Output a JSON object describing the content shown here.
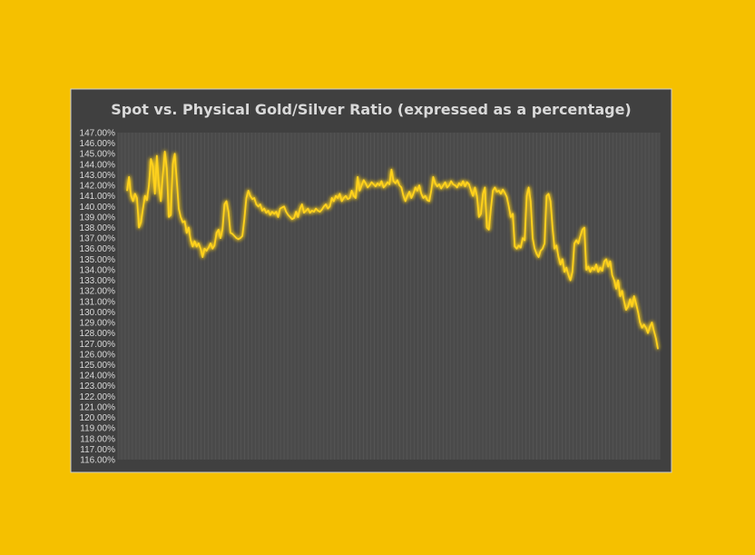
{
  "colors": {
    "page_background": "#f5c000",
    "chart_background": "#404040",
    "plot_area": "#4a4a4a",
    "line": "#ffd21f",
    "glow": "#ffe36b",
    "text": "#d9d9d9"
  },
  "chart_data": {
    "type": "line",
    "title": "Spot vs. Physical Gold/Silver Ratio (expressed as a percentage)",
    "xlabel": "",
    "ylabel": "",
    "ylim": [
      116,
      147
    ],
    "y_tick_step": 1,
    "y_tick_labels": [
      "147.00%",
      "146.00%",
      "145.00%",
      "144.00%",
      "143.00%",
      "142.00%",
      "141.00%",
      "140.00%",
      "139.00%",
      "138.00%",
      "137.00%",
      "136.00%",
      "135.00%",
      "134.00%",
      "133.00%",
      "132.00%",
      "131.00%",
      "130.00%",
      "129.00%",
      "128.00%",
      "127.00%",
      "126.00%",
      "125.00%",
      "124.00%",
      "123.00%",
      "122.00%",
      "121.00%",
      "120.00%",
      "119.00%",
      "118.00%",
      "117.00%",
      "116.00%"
    ],
    "x_axis_labels_shown": false,
    "grid": "vertical",
    "legend": "none",
    "series": [
      {
        "values": [
          141.5,
          142.8,
          141.0,
          140.5,
          141.2,
          140.8,
          138.0,
          138.5,
          139.8,
          141.0,
          140.6,
          142.0,
          144.5,
          143.8,
          141.2,
          144.8,
          142.0,
          140.5,
          143.0,
          145.2,
          143.6,
          139.0,
          139.2,
          144.0,
          145.0,
          142.5,
          139.8,
          139.0,
          138.5,
          138.6,
          137.5,
          138.0,
          136.8,
          136.2,
          136.7,
          136.2,
          136.5,
          136.0,
          135.2,
          136.0,
          135.8,
          136.1,
          136.5,
          136.0,
          136.3,
          137.5,
          137.8,
          137.0,
          137.8,
          140.2,
          140.5,
          139.5,
          137.5,
          137.4,
          137.2,
          137.0,
          136.9,
          137.0,
          137.2,
          138.8,
          140.8,
          141.5,
          141.0,
          140.7,
          140.8,
          140.2,
          140.0,
          140.2,
          139.6,
          139.8,
          139.4,
          139.6,
          139.2,
          139.5,
          139.3,
          139.5,
          139.0,
          139.8,
          139.9,
          140.0,
          139.5,
          139.2,
          139.0,
          138.8,
          138.9,
          139.5,
          139.0,
          139.8,
          140.2,
          139.4,
          139.6,
          139.8,
          139.4,
          139.6,
          139.5,
          139.8,
          139.6,
          139.5,
          139.7,
          140.0,
          140.2,
          139.8,
          140.0,
          140.8,
          140.5,
          141.0,
          140.8,
          141.2,
          140.5,
          140.8,
          141.0,
          140.7,
          140.8,
          141.5,
          141.0,
          140.8,
          142.8,
          141.5,
          142.0,
          142.5,
          142.2,
          141.8,
          142.0,
          142.3,
          142.1,
          141.9,
          142.2,
          142.0,
          142.4,
          141.8,
          142.0,
          142.3,
          142.1,
          143.5,
          142.4,
          142.2,
          142.5,
          142.0,
          141.8,
          141.0,
          140.5,
          141.0,
          141.4,
          140.8,
          141.2,
          141.8,
          141.5,
          142.0,
          141.2,
          140.8,
          141.0,
          140.6,
          140.5,
          141.5,
          142.8,
          142.2,
          141.9,
          142.1,
          141.7,
          142.0,
          142.3,
          141.8,
          142.0,
          142.4,
          142.1,
          142.0,
          141.8,
          142.2,
          142.0,
          142.4,
          141.9,
          142.3,
          142.1,
          141.5,
          141.0,
          141.8,
          141.0,
          139.0,
          139.3,
          141.2,
          141.8,
          138.0,
          137.8,
          139.8,
          141.5,
          141.8,
          141.4,
          141.5,
          141.2,
          141.6,
          141.3,
          140.9,
          140.0,
          139.0,
          139.3,
          136.2,
          136.0,
          136.3,
          136.1,
          137.0,
          136.8,
          141.0,
          141.8,
          140.5,
          137.0,
          136.0,
          135.5,
          135.2,
          135.8,
          136.0,
          136.5,
          141.0,
          141.2,
          140.5,
          138.0,
          136.0,
          136.3,
          135.2,
          134.5,
          135.0,
          133.8,
          134.2,
          133.5,
          133.0,
          133.8,
          136.5,
          136.8,
          136.5,
          137.2,
          137.8,
          138.0,
          134.0,
          134.3,
          133.8,
          134.2,
          134.0,
          134.5,
          133.8,
          134.2,
          133.9,
          134.8,
          135.0,
          134.3,
          134.8,
          133.5,
          133.0,
          132.2,
          133.0,
          131.5,
          132.0,
          131.0,
          130.2,
          130.5,
          131.2,
          130.5,
          131.5,
          130.8,
          130.0,
          129.0,
          128.5,
          128.8,
          128.5,
          128.0,
          128.6,
          129.0,
          128.2,
          127.5,
          126.5
        ]
      }
    ]
  }
}
